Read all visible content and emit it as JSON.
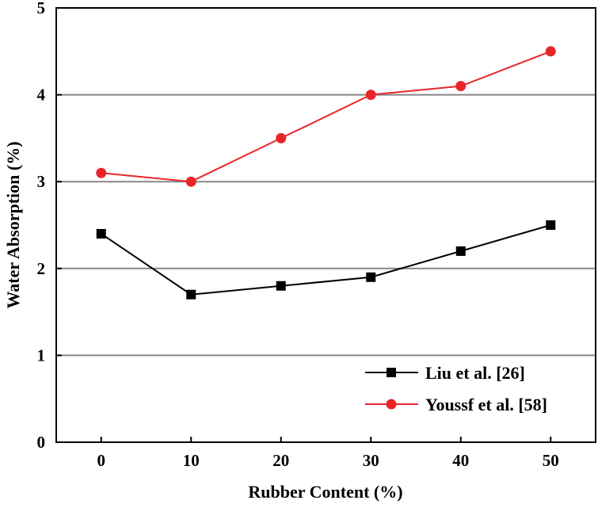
{
  "chart_data": {
    "type": "line",
    "title": "",
    "xlabel": "Rubber Content (%)",
    "ylabel": "Water Absorption (%)",
    "xlim": [
      -5,
      55
    ],
    "ylim": [
      0,
      5
    ],
    "xticks": [
      "0",
      "10",
      "20",
      "30",
      "40",
      "50"
    ],
    "yticks": [
      "0",
      "1",
      "2",
      "3",
      "4",
      "5"
    ],
    "grid": "horizontal",
    "legend": "bottom-right",
    "x": [
      0,
      10,
      20,
      30,
      40,
      50
    ],
    "series": [
      {
        "name": "Liu et al. [26]",
        "values": [
          2.4,
          1.7,
          1.8,
          1.9,
          2.2,
          2.5
        ],
        "color": "#000000",
        "marker": "square"
      },
      {
        "name": "Youssf et al. [58]",
        "values": [
          3.1,
          3.0,
          3.5,
          4.0,
          4.1,
          4.5
        ],
        "color": "#e8262a",
        "marker": "circle"
      }
    ]
  }
}
